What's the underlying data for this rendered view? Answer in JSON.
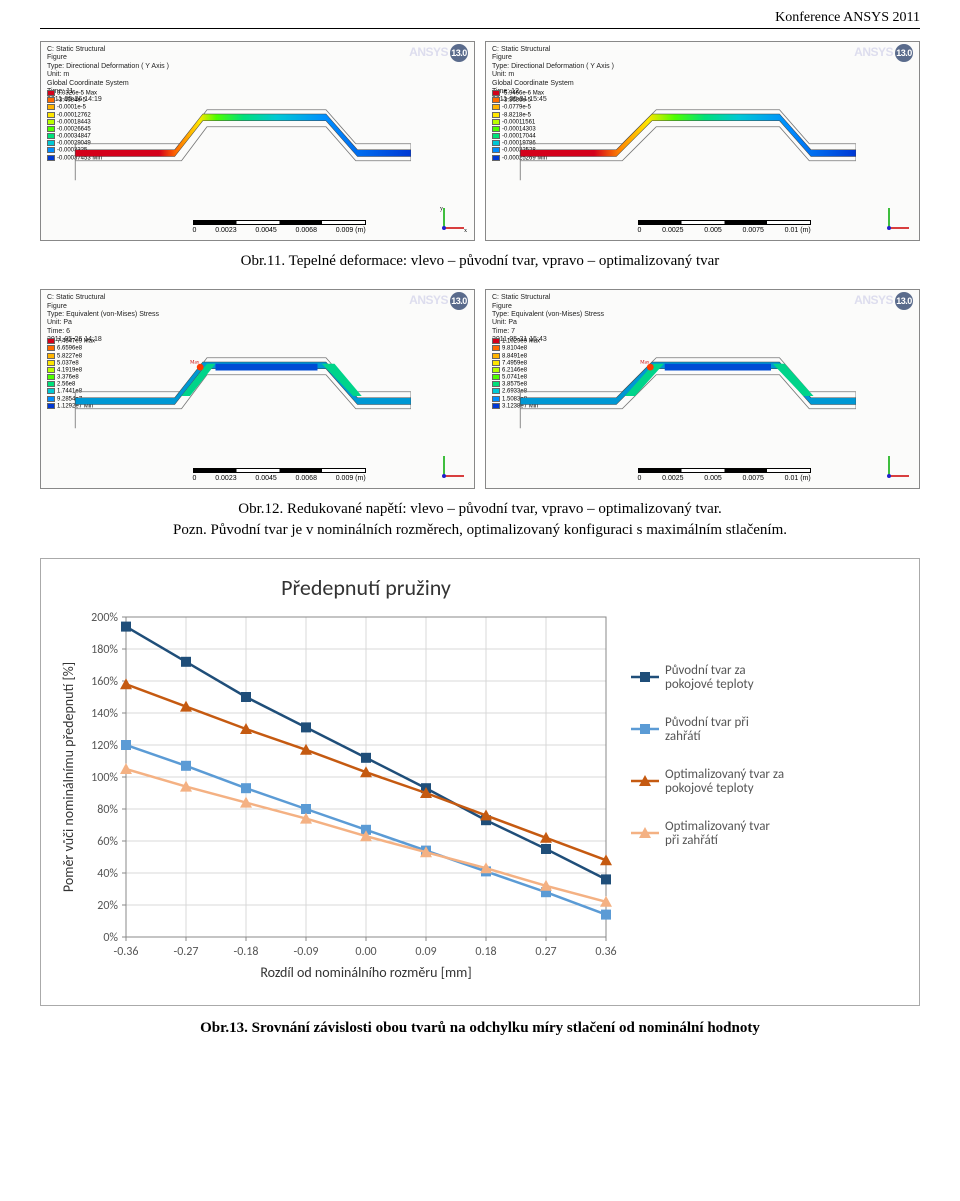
{
  "header": {
    "conference": "Konference ANSYS 2011"
  },
  "ansys": {
    "brand": "ANSYS",
    "version": "13.0"
  },
  "rainbow_colors": [
    "#d4001a",
    "#ff6a00",
    "#ffb400",
    "#ffe600",
    "#baff00",
    "#4dff00",
    "#00e07a",
    "#00c8d4",
    "#008cff",
    "#0038d4"
  ],
  "panels": {
    "def_left": {
      "title": "C: Static Structural\nFigure\nType: Directional Deformation ( Y Axis )\nUnit: m\nGlobal Coordinate System\nTime: 11\n2011-05-26 14:19",
      "legend": [
        "3.0326e-5 Max",
        "-3.4984e-5",
        "-0.0001e-5",
        "-0.00012762",
        "-0.00018443",
        "-0.00026645",
        "-0.00034847",
        "-0.00029049",
        "-0.0003325",
        "-0.00037453 Min"
      ],
      "scale": [
        "0",
        "0.0023",
        "0.0045",
        "0.0068",
        "0.009 (m)"
      ]
    },
    "def_right": {
      "title": "C: Static Structural\nFigure\nType: Directional Deformation ( Y Axis )\nUnit: m\nGlobal Coordinate System\nTime: 12\n2011-05-31 15:45",
      "legend": [
        "-5.9466e-6 Max",
        "-3.3636e-5",
        "-0.0779e-5",
        "-8.8218e-5",
        "-0.00011561",
        "-0.00014303",
        "-0.00017044",
        "-0.00019786",
        "-0.00022528",
        "-0.00025269 Min"
      ],
      "scale": [
        "0",
        "0.0025",
        "0.005",
        "0.0075",
        "0.01 (m)"
      ]
    },
    "stress_left": {
      "title": "C: Static Structural\nFigure\nType: Equivalent (von-Mises) Stress\nUnit: Pa\nTime: 6\n2011-05-26 14:18",
      "legend": [
        "7.4547e9 Max",
        "6.6596e8",
        "5.8227e8",
        "5.037e8",
        "4.1919e8",
        "3.376e8",
        "2.56e8",
        "1.7441e8",
        "9.2854e7",
        "1.1292e7 Min"
      ],
      "scale": [
        "0",
        "0.0023",
        "0.0045",
        "0.0068",
        "0.009 (m)"
      ]
    },
    "stress_right": {
      "title": "C: Static Structural\nFigure\nType: Equivalent (von-Mises) Stress\nUnit: Pa\nTime: 7\n2011-05-31 15:43",
      "legend": [
        "1.1029e9 Max",
        "9.8104e8",
        "8.8491e8",
        "7.4959e8",
        "6.2146e8",
        "5.0741e8",
        "3.8575e8",
        "2.6933e8",
        "1.5083e8",
        "3.1238e7 Min"
      ],
      "scale": [
        "0",
        "0.0025",
        "0.005",
        "0.0075",
        "0.01 (m)"
      ]
    }
  },
  "captions": {
    "fig11": "Obr.11. Tepelné deformace: vlevo – původní tvar, vpravo – optimalizovaný tvar",
    "fig12": "Obr.12. Redukované napětí: vlevo – původní tvar, vpravo – optimalizovaný tvar.",
    "fig12_note": "Pozn. Původní tvar je v nominálních rozměrech, optimalizovaný konfiguraci s maximálním stlačením.",
    "fig13": "Obr.13. Srovnání závislosti obou tvarů na odchylku míry stlačení od nominální hodnoty"
  },
  "chart": {
    "title": "Předepnutí pružiny",
    "ylabel": "Poměr vůči nominálnímu předepnutí [%]",
    "xlabel": "Rozdíl od nominálního rozměru [mm]",
    "x_ticks": [
      "-0.36",
      "-0.27",
      "-0.18",
      "-0.09",
      "0.00",
      "0.09",
      "0.18",
      "0.27",
      "0.36"
    ],
    "y_ticks": [
      "0%",
      "20%",
      "40%",
      "60%",
      "80%",
      "100%",
      "120%",
      "140%",
      "160%",
      "180%",
      "200%"
    ],
    "y_min": 0,
    "y_max": 200,
    "grid_color": "#d9d9d9",
    "plot_bg": "#ffffff",
    "series": [
      {
        "name": "Původní tvar za pokojové teploty",
        "color": "#1f4e79",
        "marker": "square",
        "values": [
          194,
          172,
          150,
          131,
          112,
          93,
          73,
          55,
          36
        ]
      },
      {
        "name": "Původní tvar při zahřátí",
        "color": "#5b9bd5",
        "marker": "square",
        "values": [
          120,
          107,
          93,
          80,
          67,
          54,
          41,
          28,
          14
        ]
      },
      {
        "name": "Optimalizovaný tvar za pokojové teploty",
        "color": "#c55a11",
        "marker": "triangle",
        "values": [
          158,
          144,
          130,
          117,
          103,
          90,
          76,
          62,
          48
        ]
      },
      {
        "name": "Optimalizovaný tvar při zahřátí",
        "color": "#f4b183",
        "marker": "triangle",
        "values": [
          105,
          94,
          84,
          74,
          63,
          53,
          43,
          32,
          22
        ]
      }
    ],
    "legend_label_fontsize": 13,
    "title_fontsize": 22,
    "axis_label_fontsize": 14
  }
}
